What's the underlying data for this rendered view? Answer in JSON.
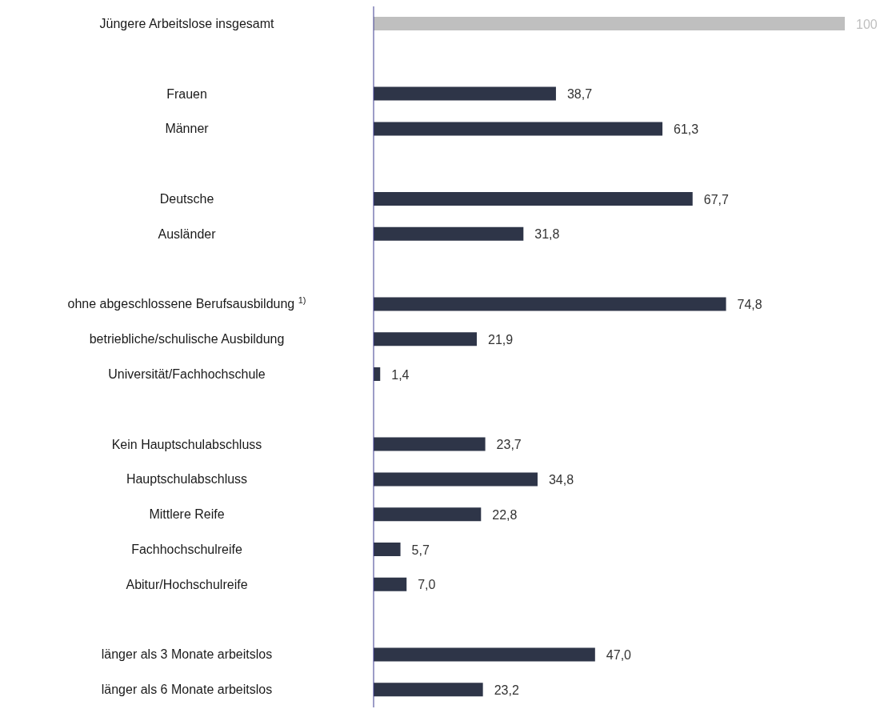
{
  "chart_data": {
    "type": "bar",
    "orientation": "horizontal",
    "categories": [
      "Jüngere Arbeitslose insgesamt",
      null,
      "Frauen",
      "Männer",
      null,
      "Deutsche",
      "Ausländer",
      null,
      "ohne abgeschlossene Berufsausbildung $^{1)}$",
      "betriebliche/schulische Ausbildung",
      "Universität/Fachhochschule",
      null,
      "Kein Hauptschulabschluss",
      "Hauptschulabschluss",
      "Mittlere Reife",
      "Fachhochschulreife",
      "Abitur/Hochschulreife",
      null,
      "länger als 3 Monate arbeitslos",
      "länger als 6 Monate arbeitslos"
    ],
    "values": [
      100,
      null,
      38.7,
      61.3,
      null,
      67.7,
      31.8,
      null,
      74.8,
      21.9,
      1.4,
      null,
      23.7,
      34.8,
      22.8,
      5.7,
      7.0,
      null,
      47.0,
      23.2
    ],
    "value_labels": [
      "100",
      null,
      "38,7",
      "61,3",
      null,
      "67,7",
      "31,8",
      null,
      "74,8",
      "21,9",
      "1,4",
      null,
      "23,7",
      "34,8",
      "22,8",
      "5,7",
      "7,0",
      null,
      "47,0",
      "23,2"
    ],
    "colors": [
      "#bfbfbf",
      null,
      "#2e3548",
      "#2e3548",
      null,
      "#2e3548",
      "#2e3548",
      null,
      "#2e3548",
      "#2e3548",
      "#2e3548",
      null,
      "#2e3548",
      "#2e3548",
      "#2e3548",
      "#2e3548",
      "#2e3548",
      null,
      "#2e3548",
      "#2e3548"
    ],
    "xlim": [
      0,
      100
    ],
    "tick_labels": "y"
  }
}
